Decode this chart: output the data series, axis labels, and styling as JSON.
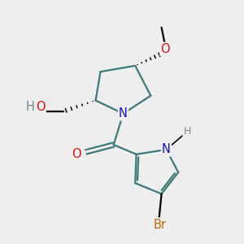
{
  "background_color": "#eeeeee",
  "bond_color": "#3a7a7a",
  "bond_width": 1.6,
  "atom_colors": {
    "N": "#1010cc",
    "O": "#cc1010",
    "Br": "#bb6600",
    "H": "#778888"
  },
  "font_size": 10.5,
  "font_size_h": 9.0
}
